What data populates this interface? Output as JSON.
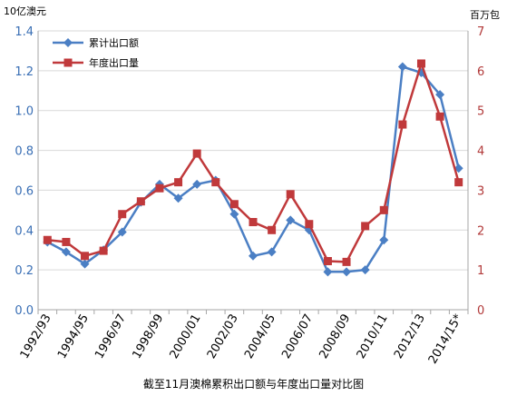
{
  "left_unit": "10亿澳元",
  "right_unit": "百万包",
  "caption": "截至11月澳棉累积出口额与年度出口量对比图",
  "colors": {
    "series1": "#4b7fc4",
    "series2": "#c0393b",
    "axis_left": "#3a6fb5",
    "axis_right": "#b23a3a",
    "grid": "#d9d9d9"
  },
  "chart_data": {
    "type": "line",
    "categories": [
      "1992/93",
      "1993/94",
      "1994/95",
      "1995/96",
      "1996/97",
      "1997/98",
      "1998/99",
      "1999/00",
      "2000/01",
      "2001/02",
      "2002/03",
      "2003/04",
      "2004/05",
      "2005/06",
      "2006/07",
      "2007/08",
      "2008/09",
      "2009/10",
      "2010/11",
      "2011/12",
      "2012/13",
      "2013/14",
      "2014/15*"
    ],
    "x_tick_labels": [
      "1992/93",
      "1994/95",
      "1996/97",
      "1998/99",
      "2000/01",
      "2002/03",
      "2004/05",
      "2006/07",
      "2008/09",
      "2010/11",
      "2012/13",
      "2014/15*"
    ],
    "y_left": {
      "min": 0,
      "max": 1.4,
      "ticks": [
        "0.0",
        "0.2",
        "0.4",
        "0.6",
        "0.8",
        "1.0",
        "1.2",
        "1.4"
      ]
    },
    "y_right": {
      "min": 0,
      "max": 7,
      "ticks": [
        "0",
        "1",
        "2",
        "3",
        "4",
        "5",
        "6",
        "7"
      ]
    },
    "grid": "horizontal",
    "legend_position": "top-left",
    "series": [
      {
        "name": "累计出口额",
        "axis": "left",
        "marker": "diamond",
        "values": [
          0.34,
          0.29,
          0.23,
          0.3,
          0.39,
          0.54,
          0.63,
          0.56,
          0.63,
          0.65,
          0.48,
          0.27,
          0.29,
          0.45,
          0.4,
          0.19,
          0.19,
          0.2,
          0.35,
          1.22,
          1.19,
          1.08,
          0.71
        ]
      },
      {
        "name": "年度出口量",
        "axis": "right",
        "marker": "square",
        "values": [
          1.75,
          1.7,
          1.35,
          1.48,
          2.4,
          2.72,
          3.05,
          3.2,
          3.92,
          3.2,
          2.65,
          2.2,
          2.0,
          2.9,
          2.15,
          1.22,
          1.2,
          2.1,
          2.5,
          4.65,
          6.18,
          4.85,
          3.2
        ]
      }
    ]
  }
}
